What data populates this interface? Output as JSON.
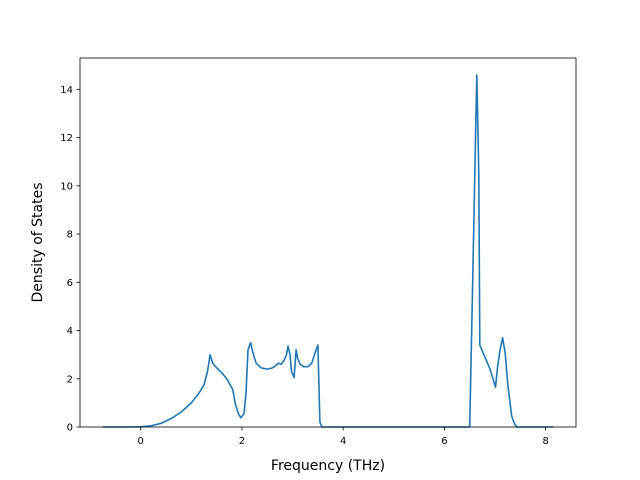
{
  "chart_data": {
    "type": "line",
    "title": "",
    "xlabel": "Frequency (THz)",
    "ylabel": "Density of States",
    "xlim": [
      -1.2,
      8.6
    ],
    "ylim": [
      0,
      15.3
    ],
    "xticks": [
      0,
      2,
      4,
      6,
      8
    ],
    "yticks": [
      0,
      2,
      4,
      6,
      8,
      10,
      12,
      14
    ],
    "grid": false,
    "legend": "none",
    "series": [
      {
        "color": "#1f77b4",
        "points": [
          [
            -0.75,
            0.0
          ],
          [
            -0.2,
            0.0
          ],
          [
            0.0,
            0.01
          ],
          [
            0.2,
            0.05
          ],
          [
            0.4,
            0.15
          ],
          [
            0.6,
            0.35
          ],
          [
            0.8,
            0.62
          ],
          [
            1.0,
            1.0
          ],
          [
            1.15,
            1.4
          ],
          [
            1.25,
            1.75
          ],
          [
            1.32,
            2.3
          ],
          [
            1.37,
            3.0
          ],
          [
            1.42,
            2.65
          ],
          [
            1.5,
            2.45
          ],
          [
            1.6,
            2.25
          ],
          [
            1.7,
            2.0
          ],
          [
            1.78,
            1.7
          ],
          [
            1.82,
            1.55
          ],
          [
            1.87,
            0.95
          ],
          [
            1.93,
            0.55
          ],
          [
            1.98,
            0.38
          ],
          [
            2.04,
            0.55
          ],
          [
            2.08,
            1.4
          ],
          [
            2.12,
            3.2
          ],
          [
            2.17,
            3.5
          ],
          [
            2.22,
            3.05
          ],
          [
            2.28,
            2.65
          ],
          [
            2.38,
            2.45
          ],
          [
            2.5,
            2.4
          ],
          [
            2.6,
            2.45
          ],
          [
            2.67,
            2.55
          ],
          [
            2.72,
            2.65
          ],
          [
            2.77,
            2.6
          ],
          [
            2.83,
            2.75
          ],
          [
            2.88,
            3.0
          ],
          [
            2.91,
            3.35
          ],
          [
            2.95,
            3.0
          ],
          [
            2.98,
            2.3
          ],
          [
            3.03,
            2.05
          ],
          [
            3.07,
            3.2
          ],
          [
            3.1,
            2.85
          ],
          [
            3.15,
            2.6
          ],
          [
            3.22,
            2.5
          ],
          [
            3.3,
            2.5
          ],
          [
            3.38,
            2.65
          ],
          [
            3.45,
            3.1
          ],
          [
            3.5,
            3.4
          ],
          [
            3.54,
            0.2
          ],
          [
            3.58,
            0.0
          ],
          [
            4.5,
            0.0
          ],
          [
            6.5,
            0.0
          ],
          [
            6.55,
            5.0
          ],
          [
            6.6,
            10.5
          ],
          [
            6.64,
            14.6
          ],
          [
            6.68,
            10.5
          ],
          [
            6.7,
            3.4
          ],
          [
            6.8,
            2.9
          ],
          [
            6.9,
            2.4
          ],
          [
            6.96,
            2.0
          ],
          [
            7.01,
            1.65
          ],
          [
            7.05,
            2.5
          ],
          [
            7.1,
            3.2
          ],
          [
            7.15,
            3.7
          ],
          [
            7.2,
            3.1
          ],
          [
            7.25,
            1.8
          ],
          [
            7.33,
            0.45
          ],
          [
            7.38,
            0.15
          ],
          [
            7.43,
            0.0
          ],
          [
            8.15,
            0.0
          ]
        ]
      }
    ]
  }
}
